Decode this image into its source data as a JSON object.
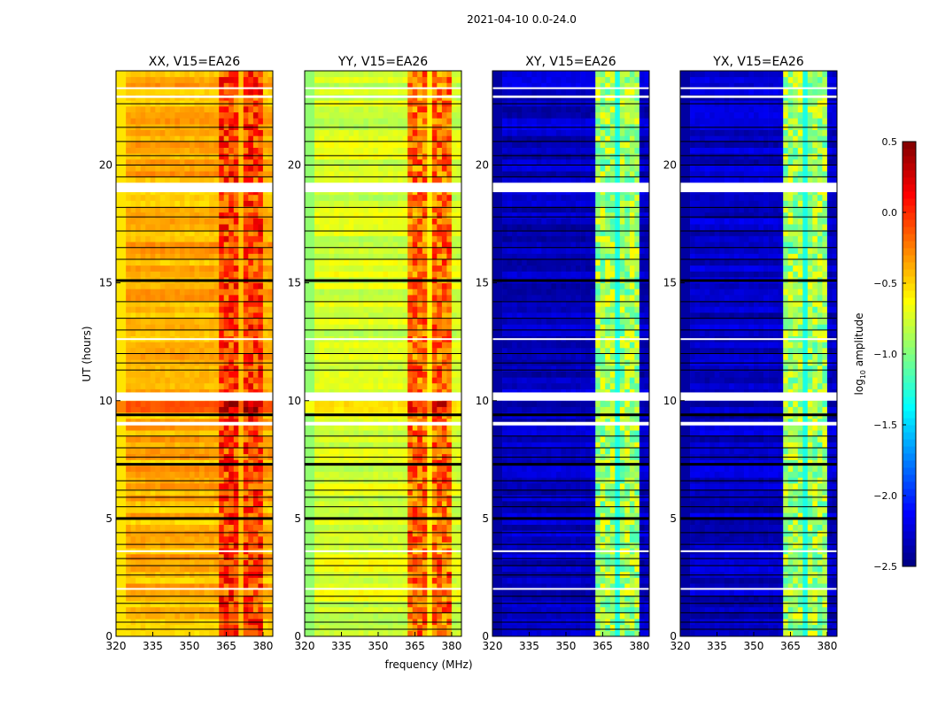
{
  "chart_data": {
    "type": "heatmap",
    "suptitle": "2021-04-10 0.0-24.0",
    "xlabel": "frequency (MHz)",
    "ylabel": "UT (hours)",
    "xlim": [
      320,
      384
    ],
    "ylim": [
      0,
      24
    ],
    "xticks": [
      "320",
      "335",
      "350",
      "365",
      "380"
    ],
    "yticks": [
      "0",
      "5",
      "10",
      "15",
      "20"
    ],
    "colorbar": {
      "label": "log10 amplitude",
      "label_main": "log",
      "label_sub": "10",
      "label_rest": " amplitude",
      "range": [
        -2.5,
        0.5
      ],
      "ticks": [
        "0.5",
        "0.0",
        "−0.5",
        "−1.0",
        "−1.5",
        "−2.0",
        "−2.5"
      ],
      "colormap": "jet"
    },
    "rfi_band_mhz": [
      362,
      381
    ],
    "rfi_gaps_mhz": [
      366,
      371,
      376
    ],
    "blanked_hours": [
      [
        18.85,
        19.25
      ],
      [
        10.0,
        10.35
      ],
      [
        8.95,
        9.1
      ],
      [
        22.85,
        22.95
      ],
      [
        23.25,
        23.3
      ],
      [
        12.6,
        12.65
      ],
      [
        2.0,
        2.05
      ],
      [
        3.6,
        3.65
      ]
    ],
    "flagged_hours": [
      0.3,
      0.6,
      1.0,
      1.4,
      1.7,
      2.6,
      3.0,
      3.3,
      3.9,
      4.4,
      5.0,
      5.5,
      5.9,
      6.2,
      6.6,
      7.3,
      7.6,
      8.0,
      8.5,
      9.4,
      11.3,
      11.6,
      12.0,
      13.0,
      13.5,
      14.2,
      15.1,
      16.0,
      16.5,
      17.2,
      17.8,
      18.2,
      19.5,
      20.0,
      20.4,
      21.0,
      21.6,
      22.6
    ],
    "panels": [
      {
        "title": "XX, V15=EA26",
        "baseline": -0.4,
        "band": -0.05,
        "edge": -0.55
      },
      {
        "title": "YY, V15=EA26",
        "baseline": -0.75,
        "band": -0.2,
        "edge": -0.95
      },
      {
        "title": "XY, V15=EA26",
        "baseline": -2.3,
        "band": -0.9,
        "edge": -2.4
      },
      {
        "title": "YX, V15=EA26",
        "baseline": -2.3,
        "band": -0.9,
        "edge": -2.4
      }
    ]
  }
}
